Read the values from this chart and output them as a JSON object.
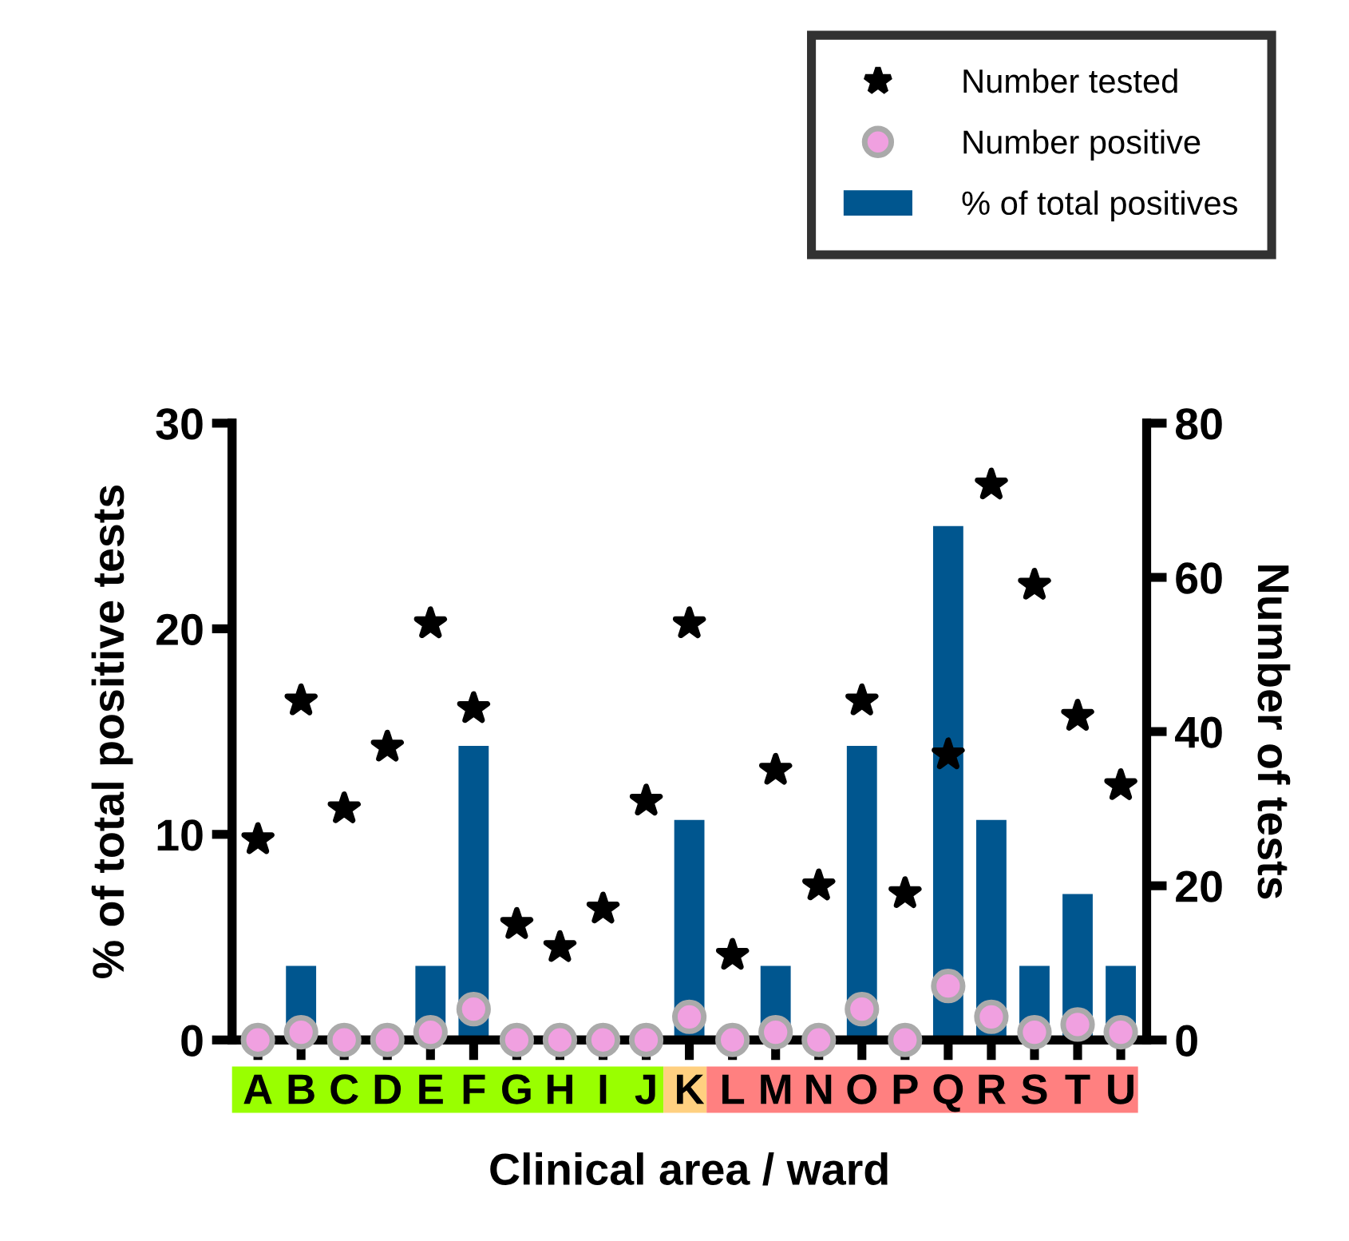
{
  "chart_data": {
    "type": "bar",
    "xlabel": "Clinical area / ward",
    "ylabel": "% of total positive tests",
    "y2label": "Number of tests",
    "categories": [
      "A",
      "B",
      "C",
      "D",
      "E",
      "F",
      "G",
      "H",
      "I",
      "J",
      "K",
      "L",
      "M",
      "N",
      "O",
      "P",
      "Q",
      "R",
      "S",
      "T",
      "U"
    ],
    "series": [
      {
        "name": "Number tested",
        "type": "scatter",
        "axis": "y2",
        "marker": "star",
        "color": "#000000",
        "values": [
          26,
          44,
          30,
          38,
          54,
          43,
          15,
          12,
          17,
          31,
          54,
          11,
          35,
          20,
          44,
          19,
          37,
          72,
          59,
          42,
          33
        ]
      },
      {
        "name": "Number positive",
        "type": "scatter",
        "axis": "y2",
        "marker": "circle",
        "color": "#f0a0e0",
        "values": [
          0,
          1,
          0,
          0,
          1,
          4,
          0,
          0,
          0,
          0,
          3,
          0,
          1,
          0,
          4,
          0,
          7,
          3,
          1,
          2,
          1
        ]
      },
      {
        "name": "% of total positives",
        "color": "#00568f",
        "values": [
          0,
          3.6,
          0,
          0,
          3.6,
          14.3,
          0,
          0,
          0,
          0,
          10.7,
          0,
          3.6,
          0,
          14.3,
          0,
          25,
          10.7,
          3.6,
          7.1,
          3.6
        ]
      }
    ],
    "ylim": [
      0,
      30
    ],
    "yticks": [
      0,
      10,
      20,
      30
    ],
    "y2lim": [
      0,
      80
    ],
    "y2ticks": [
      0,
      20,
      40,
      60,
      80
    ],
    "grid": false,
    "legend": "top right"
  }
}
